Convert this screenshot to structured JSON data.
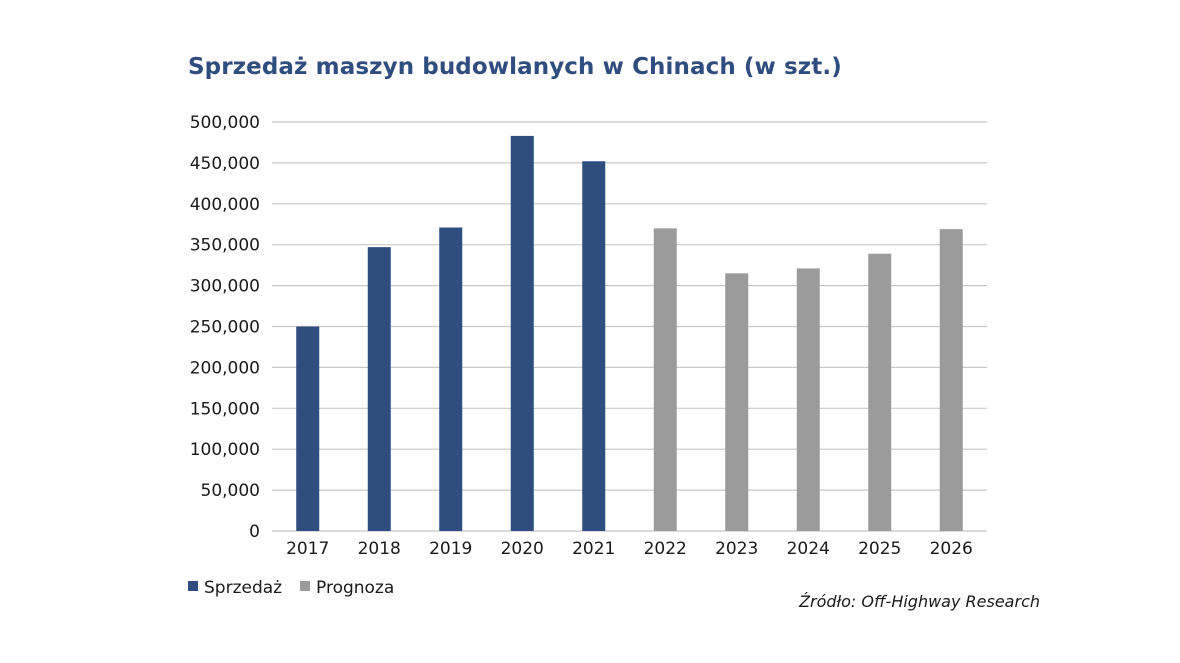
{
  "chart_data": {
    "type": "bar",
    "title": "Sprzedaż maszyn budowlanych w Chinach (w szt.)",
    "xlabel": "",
    "ylabel": "",
    "ylim": [
      0,
      500000
    ],
    "yticks": [
      {
        "value": 0,
        "label": "0"
      },
      {
        "value": 50000,
        "label": "50,000"
      },
      {
        "value": 100000,
        "label": "100,000"
      },
      {
        "value": 150000,
        "label": "150,000"
      },
      {
        "value": 200000,
        "label": "200,000"
      },
      {
        "value": 250000,
        "label": "250,000"
      },
      {
        "value": 300000,
        "label": "300,000"
      },
      {
        "value": 350000,
        "label": "350,000"
      },
      {
        "value": 400000,
        "label": "400,000"
      },
      {
        "value": 450000,
        "label": "450,000"
      },
      {
        "value": 500000,
        "label": "500,000"
      }
    ],
    "categories": [
      "2017",
      "2018",
      "2019",
      "2020",
      "2021",
      "2022",
      "2023",
      "2024",
      "2025",
      "2026"
    ],
    "series": [
      {
        "name": "Sprzedaż",
        "color": "#2f4d7e",
        "values": [
          250000,
          347000,
          371000,
          483000,
          452000,
          null,
          null,
          null,
          null,
          null
        ]
      },
      {
        "name": "Prognoza",
        "color": "#9b9b9b",
        "values": [
          null,
          null,
          null,
          null,
          null,
          370000,
          315000,
          321000,
          339000,
          369000
        ]
      }
    ],
    "grid": true,
    "gridline_color": "#c8c8c8",
    "legend_position": "bottom-left",
    "source": "Źródło: Off-Highway Research"
  }
}
